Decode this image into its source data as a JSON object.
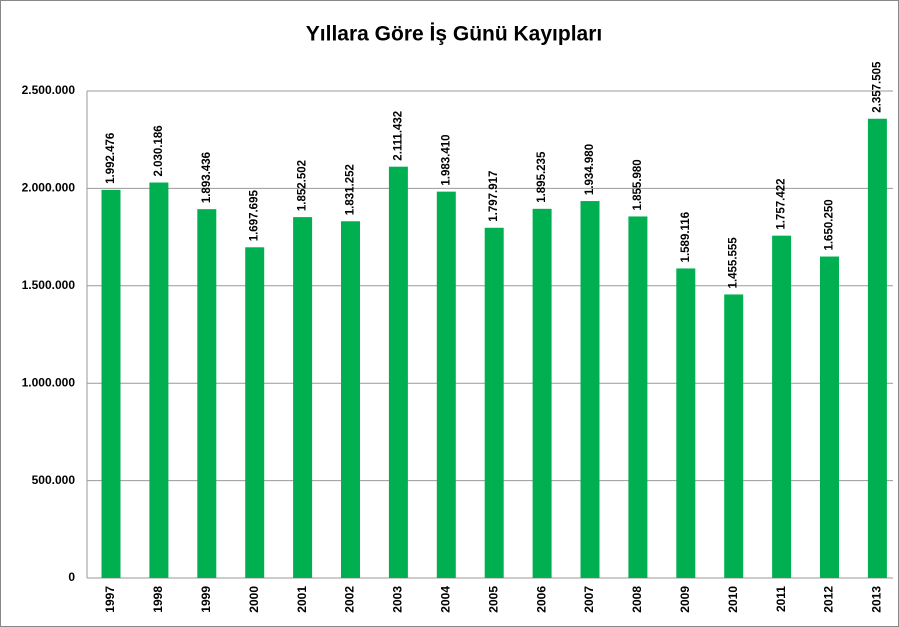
{
  "chart_data": {
    "type": "bar",
    "title": "Yıllara Göre İş Günü Kayıpları",
    "categories": [
      "1997",
      "1998",
      "1999",
      "2000",
      "2001",
      "2002",
      "2003",
      "2004",
      "2005",
      "2006",
      "2007",
      "2008",
      "2009",
      "2010",
      "2011",
      "2012",
      "2013"
    ],
    "values": [
      1992476,
      2030186,
      1893436,
      1697695,
      1852502,
      1831252,
      2111432,
      1983410,
      1797917,
      1895235,
      1934980,
      1855980,
      1589116,
      1455555,
      1757422,
      1650250,
      2357505
    ],
    "value_labels": [
      "1.992.476",
      "2.030.186",
      "1.893.436",
      "1.697.695",
      "1.852.502",
      "1.831.252",
      "2.111.432",
      "1.983.410",
      "1.797.917",
      "1.895.235",
      "1.934.980",
      "1.855.980",
      "1.589.116",
      "1.455.555",
      "1.757.422",
      "1.650.250",
      "2.357.505"
    ],
    "color": "#00b050",
    "ylim": [
      0,
      2500000
    ],
    "yticks": [
      0,
      {
        "value": 500000,
        "label": "500.000"
      },
      {
        "value": 1000000,
        "label": "1.000.000"
      },
      {
        "value": 1500000,
        "label": "1.500.000"
      },
      {
        "value": 2000000,
        "label": "2.000.000"
      },
      {
        "value": 2500000,
        "label": "2.500.000"
      }
    ],
    "grid": true
  }
}
